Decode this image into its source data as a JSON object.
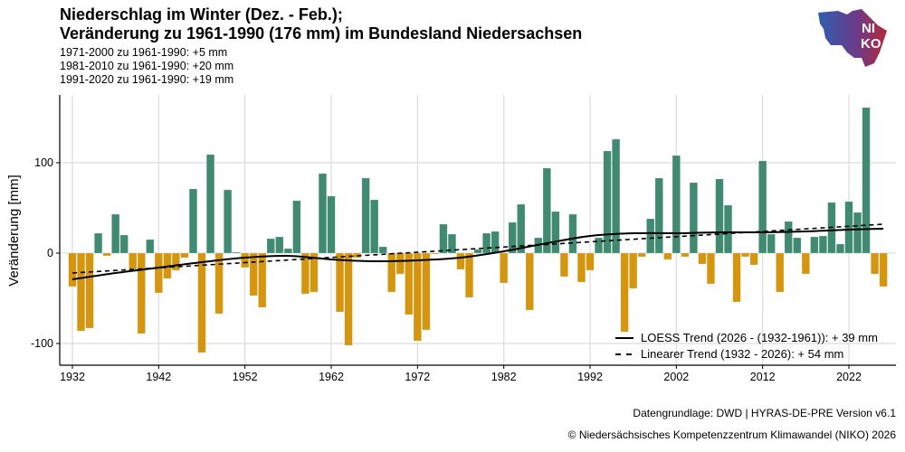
{
  "header": {
    "title_line1": "Niederschlag im Winter (Dez. - Feb.);",
    "title_line2": "Veränderung zu 1961-1990 (176 mm) im Bundesland Niedersachsen",
    "subtitles": [
      "1971-2000 zu 1961-1990: +5 mm",
      "1981-2010 zu 1961-1990: +20 mm",
      "1991-2020 zu 1961-1990: +19 mm"
    ]
  },
  "logo": {
    "text_top": "NI",
    "text_bottom": "KO",
    "icon": "niedersachsen-map-logo"
  },
  "footer": {
    "source": "Datengrundlage: DWD | HYRAS-DE-PRE Version v6.1",
    "copyright": "© Niedersächsisches Kompetenzzentrum Klimawandel (NIKO) 2026"
  },
  "colors": {
    "positive": "#3f8a70",
    "negative": "#d4960f",
    "grid": "#dcdcdc"
  },
  "chart_data": {
    "type": "bar",
    "title": "Niederschlag im Winter (Dez. - Feb.); Veränderung zu 1961-1990 (176 mm) im Bundesland Niedersachsen",
    "xlabel": "",
    "ylabel": "Veränderung [mm]",
    "ylim": [
      -124,
      175
    ],
    "xlim": [
      1930.5,
      2027.5
    ],
    "grid": true,
    "yticks": [
      -100,
      0,
      100
    ],
    "ytick_labels": [
      "-100",
      "0",
      "100"
    ],
    "xticks": [
      1932,
      1942,
      1952,
      1962,
      1972,
      1982,
      1992,
      2002,
      2012,
      2022
    ],
    "xtick_labels": [
      "1932",
      "1942",
      "1952",
      "1962",
      "1972",
      "1982",
      "1992",
      "2002",
      "2012",
      "2022"
    ],
    "x_start": 1932,
    "values": [
      -37,
      -86,
      -83,
      22,
      -3,
      43,
      20,
      -18,
      -89,
      15,
      -44,
      -28,
      -19,
      -5,
      71,
      -110,
      109,
      -67,
      70,
      1,
      -16,
      -47,
      -60,
      16,
      18,
      5,
      58,
      -45,
      -43,
      88,
      63,
      -65,
      -102,
      -5,
      83,
      59,
      7,
      -43,
      -23,
      -68,
      -97,
      -85,
      -1,
      32,
      21,
      -18,
      -49,
      4,
      22,
      24,
      -33,
      34,
      54,
      -63,
      17,
      94,
      46,
      -26,
      43,
      -32,
      -19,
      17,
      113,
      126,
      -87,
      -39,
      -4,
      38,
      83,
      -7,
      108,
      -4,
      78,
      -12,
      -34,
      82,
      53,
      -54,
      -4,
      -13,
      102,
      21,
      -43,
      35,
      17,
      -23,
      18,
      19,
      56,
      10,
      57,
      45,
      161,
      -23,
      -37
    ],
    "series": [
      {
        "name": "LOESS Trend (2026 - (1932-1961)): + 39 mm",
        "style": "solid",
        "x": [
          1932,
          1937,
          1942,
          1947,
          1952,
          1957,
          1962,
          1967,
          1972,
          1977,
          1982,
          1987,
          1992,
          1997,
          2002,
          2007,
          2012,
          2017,
          2022,
          2026
        ],
        "y": [
          -29,
          -22,
          -16,
          -10,
          -5,
          -3,
          -7,
          -9,
          -8,
          -5,
          2,
          11,
          19,
          22,
          22,
          23,
          23,
          24,
          26,
          27
        ]
      },
      {
        "name": "Linearer Trend (1932 - 2026): + 54 mm",
        "style": "dashed",
        "x": [
          1932,
          2026
        ],
        "y": [
          -22,
          32
        ]
      }
    ],
    "legend_position": "bottom-right",
    "legend": [
      "LOESS Trend (2026 - (1932-1961)): + 39 mm",
      "Linearer Trend (1932 - 2026): + 54 mm"
    ]
  }
}
